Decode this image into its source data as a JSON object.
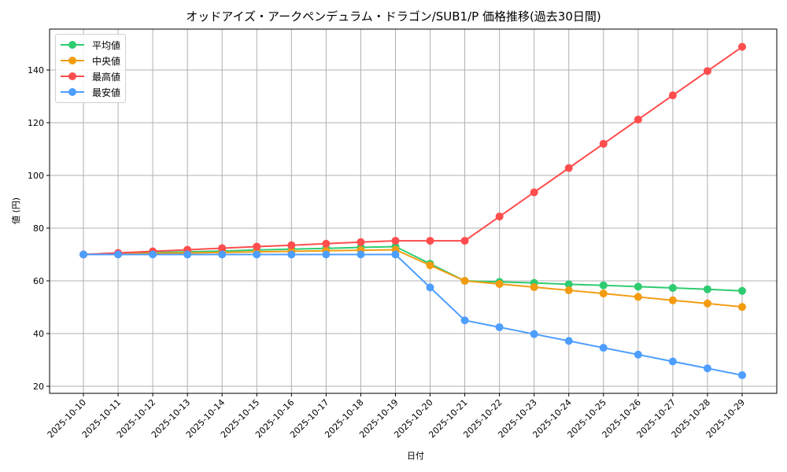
{
  "chart_data": {
    "type": "line",
    "title": "オッドアイズ・アークペンデュラム・ドラゴン/SUB1/P 価格推移(過去30日間)",
    "xlabel": "日付",
    "ylabel": "値 (円)",
    "ylim": [
      17,
      155
    ],
    "yticks": [
      20,
      40,
      60,
      80,
      100,
      120,
      140
    ],
    "grid": true,
    "legend_position": "upper left",
    "categories": [
      "2025-10-10",
      "2025-10-11",
      "2025-10-12",
      "2025-10-13",
      "2025-10-14",
      "2025-10-15",
      "2025-10-16",
      "2025-10-17",
      "2025-10-18",
      "2025-10-19",
      "2025-10-20",
      "2025-10-21",
      "2025-10-22",
      "2025-10-23",
      "2025-10-24",
      "2025-10-25",
      "2025-10-26",
      "2025-10-27",
      "2025-10-28",
      "2025-10-29"
    ],
    "series": [
      {
        "name": "平均値",
        "color": "#2ecc71",
        "values": [
          70.0,
          70.3,
          70.7,
          71.0,
          71.3,
          71.7,
          72.0,
          72.3,
          72.7,
          73.0,
          66.5,
          60.0,
          59.6,
          59.2,
          58.7,
          58.3,
          57.8,
          57.3,
          56.8,
          56.2
        ]
      },
      {
        "name": "中央値",
        "color": "#f39c12",
        "values": [
          70.0,
          70.2,
          70.4,
          70.6,
          70.8,
          71.0,
          71.2,
          71.4,
          71.6,
          71.8,
          65.9,
          60.0,
          58.8,
          57.6,
          56.4,
          55.2,
          53.9,
          52.6,
          51.4,
          50.1
        ]
      },
      {
        "name": "最高値",
        "color": "#ff4d4d",
        "values": [
          70.0,
          70.6,
          71.2,
          71.8,
          72.4,
          73.0,
          73.5,
          74.1,
          74.7,
          75.2,
          75.2,
          75.2,
          84.4,
          93.6,
          102.8,
          112.0,
          121.2,
          130.4,
          139.6,
          148.8
        ]
      },
      {
        "name": "最安値",
        "color": "#4d9eff",
        "values": [
          70.0,
          70.0,
          70.0,
          70.0,
          70.0,
          70.0,
          70.0,
          70.0,
          70.0,
          70.0,
          57.5,
          45.0,
          42.4,
          39.8,
          37.2,
          34.6,
          32.0,
          29.4,
          26.8,
          24.2
        ]
      }
    ]
  }
}
